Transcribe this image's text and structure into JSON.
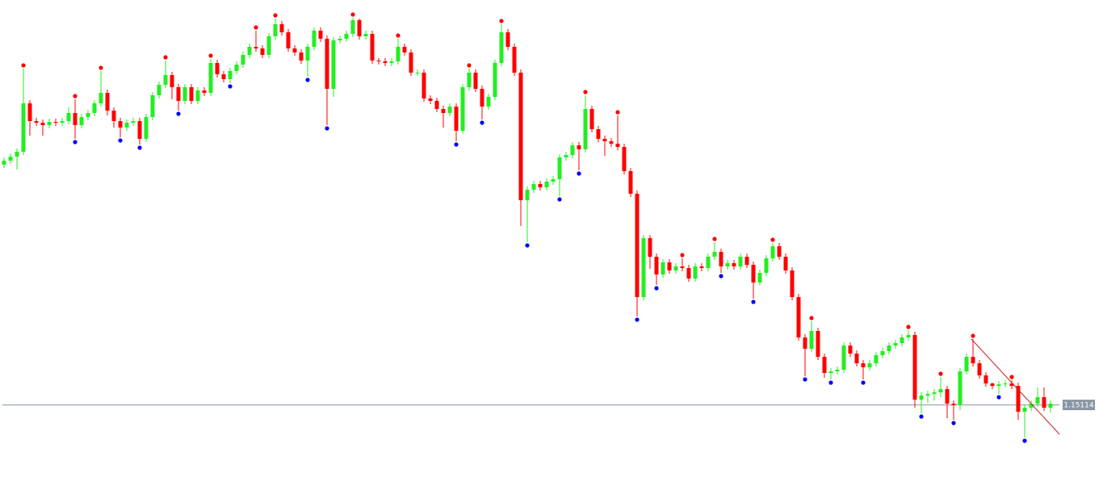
{
  "chart_data": {
    "type": "candlestick",
    "ylim": [
      1.1411,
      1.2013
    ],
    "bull_color": "#22ee22",
    "bear_color": "#ff0000",
    "fractal_up_color": "#ff0000",
    "fractal_down_color": "#0000ff",
    "open": [
      1.1809,
      1.1814,
      1.1819,
      1.1825,
      1.1885,
      1.1863,
      1.1861,
      1.1858,
      1.1862,
      1.1861,
      1.1863,
      1.1873,
      1.1858,
      1.1868,
      1.1873,
      1.1885,
      1.1898,
      1.1876,
      1.1863,
      1.1855,
      1.1861,
      1.1863,
      1.1841,
      1.1868,
      1.1895,
      1.1908,
      1.192,
      1.1905,
      1.1888,
      1.1905,
      1.1888,
      1.1901,
      1.1898,
      1.1935,
      1.1921,
      1.1915,
      1.1925,
      1.1933,
      1.1945,
      1.1955,
      1.1953,
      1.1945,
      1.1968,
      1.1983,
      1.1973,
      1.1953,
      1.1948,
      1.1938,
      1.1955,
      1.1975,
      1.1965,
      1.1903,
      1.1963,
      1.1965,
      1.1971,
      1.1988,
      1.1968,
      1.1971,
      1.1938,
      1.1937,
      1.1935,
      1.1937,
      1.1955,
      1.1948,
      1.1923,
      1.1923,
      1.1891,
      1.1888,
      1.1878,
      1.1873,
      1.1881,
      1.1851,
      1.1905,
      1.1923,
      1.1903,
      1.1881,
      1.1893,
      1.1935,
      1.1973,
      1.1955,
      1.1923,
      1.1765,
      1.1778,
      1.1785,
      1.1781,
      1.1788,
      1.1791,
      1.1818,
      1.1821,
      1.1833,
      1.1828,
      1.1878,
      1.1853,
      1.1841,
      1.1838,
      1.1835,
      1.1831,
      1.1801,
      1.1773,
      1.1645,
      1.1718,
      1.1695,
      1.1673,
      1.1688,
      1.1678,
      1.1683,
      1.1681,
      1.1668,
      1.1683,
      1.1681,
      1.1695,
      1.1701,
      1.1683,
      1.1687,
      1.1683,
      1.1695,
      1.1685,
      1.1663,
      1.1675,
      1.1693,
      1.1708,
      1.1695,
      1.1678,
      1.1645,
      1.1595,
      1.1581,
      1.1603,
      1.1571,
      1.1551,
      1.1553,
      1.1555,
      1.1585,
      1.1575,
      1.1563,
      1.1558,
      1.1563,
      1.1573,
      1.1578,
      1.1585,
      1.1588,
      1.1595,
      1.1598,
      1.1518,
      1.1523,
      1.1525,
      1.1527,
      1.1531,
      1.1513,
      1.1511,
      1.1553,
      1.1571,
      1.1563,
      1.1548,
      1.1538,
      1.1535,
      1.1537,
      1.1538,
      1.1535,
      1.1503,
      1.1508,
      1.1513,
      1.1521,
      1.1508
    ],
    "close": [
      1.1814,
      1.1819,
      1.1825,
      1.1885,
      1.1863,
      1.1861,
      1.1858,
      1.1862,
      1.1861,
      1.1863,
      1.1873,
      1.1858,
      1.1868,
      1.1873,
      1.1885,
      1.1898,
      1.1876,
      1.1863,
      1.1855,
      1.1861,
      1.1863,
      1.1841,
      1.1868,
      1.1895,
      1.1908,
      1.192,
      1.1905,
      1.1888,
      1.1905,
      1.1888,
      1.1901,
      1.1898,
      1.1935,
      1.1921,
      1.1915,
      1.1925,
      1.1933,
      1.1945,
      1.1955,
      1.1953,
      1.1945,
      1.1968,
      1.1983,
      1.1973,
      1.1953,
      1.1948,
      1.1938,
      1.1955,
      1.1975,
      1.1965,
      1.1903,
      1.1963,
      1.1965,
      1.1971,
      1.1988,
      1.1968,
      1.1971,
      1.1938,
      1.1937,
      1.1935,
      1.1937,
      1.1955,
      1.1948,
      1.1923,
      1.1923,
      1.1891,
      1.1888,
      1.1878,
      1.1873,
      1.1881,
      1.1851,
      1.1905,
      1.1923,
      1.1903,
      1.1881,
      1.1893,
      1.1935,
      1.1973,
      1.1955,
      1.1923,
      1.1765,
      1.1778,
      1.1785,
      1.1781,
      1.1788,
      1.1791,
      1.1818,
      1.1821,
      1.1833,
      1.1828,
      1.1878,
      1.1853,
      1.1841,
      1.1838,
      1.1835,
      1.1831,
      1.1801,
      1.1773,
      1.1645,
      1.1718,
      1.1695,
      1.1673,
      1.1688,
      1.1678,
      1.1683,
      1.1681,
      1.1668,
      1.1683,
      1.1681,
      1.1695,
      1.1701,
      1.1683,
      1.1687,
      1.1683,
      1.1695,
      1.1685,
      1.1663,
      1.1675,
      1.1693,
      1.1708,
      1.1695,
      1.1678,
      1.1645,
      1.1595,
      1.1581,
      1.1603,
      1.1571,
      1.1551,
      1.1553,
      1.1555,
      1.1585,
      1.1575,
      1.1563,
      1.1558,
      1.1563,
      1.1573,
      1.1578,
      1.1585,
      1.1588,
      1.1595,
      1.1598,
      1.1518,
      1.1523,
      1.1525,
      1.1527,
      1.1531,
      1.1513,
      1.1511,
      1.1553,
      1.1571,
      1.1563,
      1.1548,
      1.1538,
      1.1535,
      1.1537,
      1.1538,
      1.1535,
      1.1503,
      1.1508,
      1.1513,
      1.1521,
      1.1508,
      1.1513
    ],
    "high": [
      1.1818,
      1.1823,
      1.1829,
      1.1928,
      1.1889,
      1.1867,
      1.1865,
      1.1866,
      1.1866,
      1.1867,
      1.188,
      1.189,
      1.1872,
      1.1877,
      1.1889,
      1.1925,
      1.1902,
      1.188,
      1.1867,
      1.1865,
      1.1867,
      1.1867,
      1.1872,
      1.1899,
      1.1912,
      1.1938,
      1.1924,
      1.1909,
      1.1909,
      1.1909,
      1.1905,
      1.1905,
      1.194,
      1.1939,
      1.1925,
      1.1929,
      1.1937,
      1.1949,
      1.1959,
      1.1975,
      1.1957,
      1.1972,
      1.199,
      1.1987,
      1.1977,
      1.1957,
      1.1952,
      1.1959,
      1.1979,
      1.1979,
      1.1969,
      1.1967,
      1.1969,
      1.1975,
      1.1991,
      1.199,
      1.1975,
      1.1975,
      1.1941,
      1.1941,
      1.1941,
      1.1965,
      1.1959,
      1.1952,
      1.1927,
      1.1927,
      1.1895,
      1.1892,
      1.1882,
      1.1885,
      1.1885,
      1.1909,
      1.1928,
      1.1927,
      1.1907,
      1.1897,
      1.1939,
      1.1983,
      1.1977,
      1.1959,
      1.1927,
      1.1782,
      1.1789,
      1.1789,
      1.1792,
      1.1795,
      1.1822,
      1.1825,
      1.1837,
      1.1837,
      1.1895,
      1.1882,
      1.1857,
      1.1845,
      1.1842,
      1.187,
      1.1835,
      1.1805,
      1.1777,
      1.1722,
      1.1722,
      1.1699,
      1.1692,
      1.1692,
      1.1687,
      1.1693,
      1.1685,
      1.1687,
      1.1687,
      1.1699,
      1.1713,
      1.1705,
      1.1691,
      1.1691,
      1.1699,
      1.1699,
      1.1689,
      1.1679,
      1.1697,
      1.1712,
      1.1712,
      1.1699,
      1.1682,
      1.1649,
      1.1599,
      1.1615,
      1.1607,
      1.1575,
      1.1557,
      1.1559,
      1.1589,
      1.1589,
      1.1579,
      1.1567,
      1.1567,
      1.1577,
      1.1582,
      1.1589,
      1.1592,
      1.1599,
      1.1604,
      1.1602,
      1.1527,
      1.1529,
      1.1531,
      1.1546,
      1.1535,
      1.1517,
      1.1557,
      1.1575,
      1.1593,
      1.1567,
      1.1552,
      1.1539,
      1.1541,
      1.1542,
      1.1542,
      1.1539,
      1.1512,
      1.1517,
      1.1533,
      1.1533,
      1.1517
    ],
    "low": [
      1.1805,
      1.181,
      1.1803,
      1.1821,
      1.1845,
      1.1857,
      1.1845,
      1.1854,
      1.1857,
      1.1857,
      1.1859,
      1.1841,
      1.1854,
      1.1864,
      1.1869,
      1.1881,
      1.187,
      1.1855,
      1.1843,
      1.1851,
      1.1857,
      1.1834,
      1.1837,
      1.1864,
      1.1891,
      1.1904,
      1.189,
      1.1876,
      1.1884,
      1.1884,
      1.1884,
      1.1894,
      1.1894,
      1.1917,
      1.1911,
      1.191,
      1.1921,
      1.1929,
      1.1941,
      1.1949,
      1.1941,
      1.1941,
      1.1964,
      1.1969,
      1.1949,
      1.1944,
      1.1934,
      1.1918,
      1.1951,
      1.1961,
      1.1858,
      1.1893,
      1.1959,
      1.1961,
      1.1967,
      1.1964,
      1.1964,
      1.1934,
      1.1933,
      1.1931,
      1.1931,
      1.1933,
      1.1944,
      1.1919,
      1.1919,
      1.1887,
      1.1884,
      1.1874,
      1.1855,
      1.1869,
      1.1838,
      1.1847,
      1.1901,
      1.1899,
      1.1865,
      1.1877,
      1.1889,
      1.1931,
      1.1951,
      1.1919,
      1.1733,
      1.1713,
      1.1774,
      1.1777,
      1.1777,
      1.1784,
      1.177,
      1.1814,
      1.1817,
      1.1802,
      1.1824,
      1.1849,
      1.1837,
      1.182,
      1.1831,
      1.1827,
      1.1797,
      1.1769,
      1.1621,
      1.1641,
      1.168,
      1.166,
      1.1669,
      1.1674,
      1.1674,
      1.1677,
      1.1664,
      1.1664,
      1.1677,
      1.1677,
      1.1691,
      1.1675,
      1.1679,
      1.1679,
      1.1679,
      1.1681,
      1.1643,
      1.1659,
      1.1671,
      1.1689,
      1.1691,
      1.1674,
      1.1641,
      1.1591,
      1.1547,
      1.1577,
      1.1567,
      1.1545,
      1.1543,
      1.1549,
      1.1551,
      1.1571,
      1.1559,
      1.1543,
      1.1554,
      1.1559,
      1.1569,
      1.1574,
      1.1581,
      1.1584,
      1.1591,
      1.1508,
      1.1501,
      1.1514,
      1.1517,
      1.1521,
      1.1495,
      1.1493,
      1.1505,
      1.1549,
      1.1559,
      1.1544,
      1.1534,
      1.1531,
      1.1525,
      1.1533,
      1.1531,
      1.1493,
      1.1471,
      1.1504,
      1.1509,
      1.1504,
      1.1502
    ],
    "fractal_up": [
      3,
      11,
      15,
      25,
      32,
      39,
      42,
      54,
      61,
      72,
      77,
      90,
      95,
      105,
      110,
      119,
      125,
      140,
      145,
      150,
      156
    ],
    "fractal_down": [
      11,
      18,
      21,
      27,
      35,
      47,
      50,
      70,
      74,
      81,
      86,
      89,
      98,
      101,
      111,
      116,
      124,
      128,
      133,
      142,
      147,
      154,
      158
    ],
    "trendline": {
      "x": [
        149.75,
        163.4
      ],
      "values": [
        1.1593,
        1.1475
      ],
      "color": "#cc2222"
    },
    "price_line": {
      "value": 1.15114,
      "label": "1.15114",
      "color": "#8a96a3"
    }
  }
}
